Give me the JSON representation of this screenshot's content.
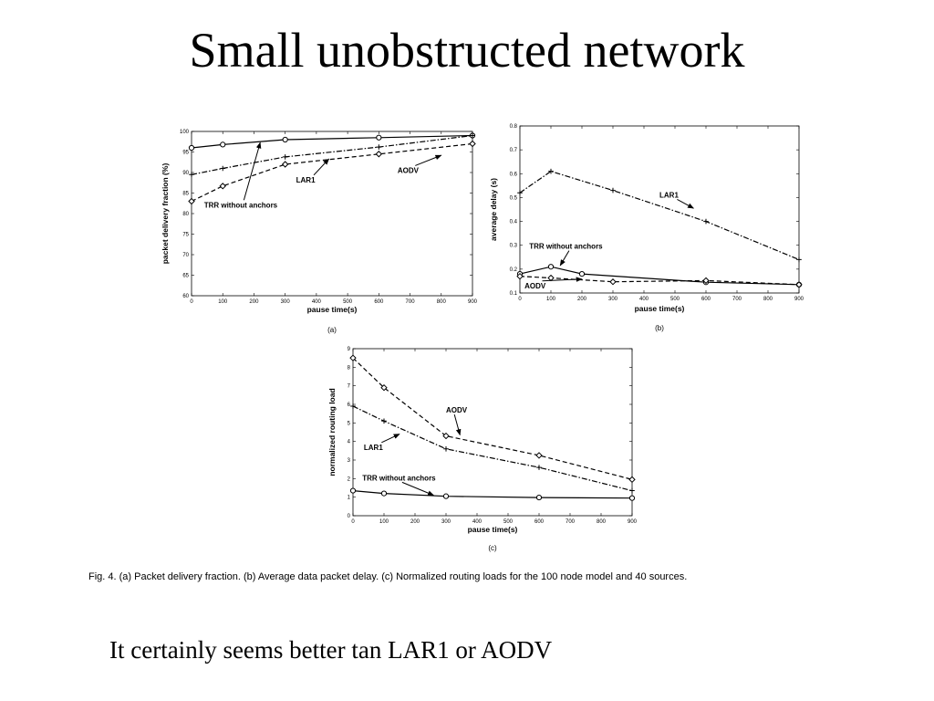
{
  "slide": {
    "title": "Small unobstructed network",
    "caption": "Fig. 4. (a) Packet delivery fraction. (b) Average data packet delay. (c) Normalized routing loads for the 100 node model and 40 sources.",
    "note": "It certainly seems better tan LAR1 or AODV"
  },
  "chart_data": [
    {
      "id": "a",
      "type": "line",
      "panel_label": "(a)",
      "xlabel": "pause time(s)",
      "ylabel": "packet delivery fraction (%)",
      "xlim": [
        0,
        900
      ],
      "ylim": [
        60,
        100
      ],
      "xticks": [
        0,
        100,
        200,
        300,
        400,
        500,
        600,
        700,
        800,
        900
      ],
      "yticks": [
        60,
        65,
        70,
        75,
        80,
        85,
        90,
        95,
        100
      ],
      "grid": false,
      "series": [
        {
          "name": "TRR without anchors",
          "style": "solid",
          "marker": "circle",
          "x": [
            0,
            100,
            300,
            600,
            900
          ],
          "y": [
            96,
            96.8,
            98,
            98.5,
            99
          ]
        },
        {
          "name": "LAR1",
          "style": "dashdot",
          "marker": "plus",
          "x": [
            0,
            100,
            300,
            600,
            900
          ],
          "y": [
            89.5,
            91,
            93.8,
            96.2,
            99
          ]
        },
        {
          "name": "AODV",
          "style": "dashed",
          "marker": "diamond",
          "x": [
            0,
            100,
            300,
            600,
            900
          ],
          "y": [
            83,
            86.7,
            92,
            94.5,
            97
          ]
        }
      ],
      "annotations": [
        {
          "text": "TRR without anchors",
          "x": 40,
          "y": 81.5,
          "arrow_to": [
            220,
            97.3
          ]
        },
        {
          "text": "LAR1",
          "x": 335,
          "y": 87.6,
          "arrow_to": [
            440,
            93.3
          ]
        },
        {
          "text": "AODV",
          "x": 660,
          "y": 89.9,
          "arrow_to": [
            800,
            94.2
          ]
        }
      ]
    },
    {
      "id": "b",
      "type": "line",
      "panel_label": "(b)",
      "xlabel": "pause time(s)",
      "ylabel": "average delay (s)",
      "xlim": [
        0,
        900
      ],
      "ylim": [
        0.1,
        0.8
      ],
      "xticks": [
        0,
        100,
        200,
        300,
        400,
        500,
        600,
        700,
        800,
        900
      ],
      "yticks": [
        0.1,
        0.2,
        0.3,
        0.4,
        0.5,
        0.6,
        0.7,
        0.8
      ],
      "grid": false,
      "series": [
        {
          "name": "TRR without anchors",
          "style": "solid",
          "marker": "circle",
          "x": [
            0,
            100,
            200,
            600,
            900
          ],
          "y": [
            0.18,
            0.21,
            0.18,
            0.145,
            0.135
          ]
        },
        {
          "name": "LAR1",
          "style": "dashdot",
          "marker": "plus",
          "x": [
            0,
            100,
            300,
            600,
            900
          ],
          "y": [
            0.52,
            0.61,
            0.53,
            0.4,
            0.24
          ]
        },
        {
          "name": "AODV",
          "style": "dashed",
          "marker": "diamond",
          "x": [
            0,
            100,
            300,
            600,
            900
          ],
          "y": [
            0.17,
            0.163,
            0.147,
            0.152,
            0.135
          ]
        }
      ],
      "annotations": [
        {
          "text": "TRR without anchors",
          "x": 30,
          "y": 0.285,
          "arrow_to": [
            130,
            0.215
          ]
        },
        {
          "text": "LAR1",
          "x": 450,
          "y": 0.5,
          "arrow_to": [
            560,
            0.455
          ]
        },
        {
          "text": "AODV",
          "x": 15,
          "y": 0.12,
          "arrow_to": [
            200,
            0.158
          ]
        }
      ]
    },
    {
      "id": "c",
      "type": "line",
      "panel_label": "(c)",
      "xlabel": "pause time(s)",
      "ylabel": "normalized routing load",
      "xlim": [
        0,
        900
      ],
      "ylim": [
        0,
        9
      ],
      "xticks": [
        0,
        100,
        200,
        300,
        400,
        500,
        600,
        700,
        800,
        900
      ],
      "yticks": [
        0,
        1,
        2,
        3,
        4,
        5,
        6,
        7,
        8,
        9
      ],
      "grid": false,
      "series": [
        {
          "name": "TRR without anchors",
          "style": "solid",
          "marker": "circle",
          "x": [
            0,
            100,
            300,
            600,
            900
          ],
          "y": [
            1.35,
            1.2,
            1.05,
            0.98,
            0.95
          ]
        },
        {
          "name": "LAR1",
          "style": "dashdot",
          "marker": "plus",
          "x": [
            0,
            100,
            300,
            600,
            900
          ],
          "y": [
            5.9,
            5.1,
            3.6,
            2.6,
            1.35
          ]
        },
        {
          "name": "AODV",
          "style": "dashed",
          "marker": "diamond",
          "x": [
            0,
            100,
            300,
            600,
            900
          ],
          "y": [
            8.5,
            6.9,
            4.3,
            3.25,
            1.95
          ]
        }
      ],
      "annotations": [
        {
          "text": "TRR without anchors",
          "x": 30,
          "y": 1.9,
          "arrow_to": [
            260,
            1.1
          ]
        },
        {
          "text": "LAR1",
          "x": 35,
          "y": 3.55,
          "arrow_to": [
            150,
            4.4
          ]
        },
        {
          "text": "AODV",
          "x": 300,
          "y": 5.55,
          "arrow_to": [
            345,
            4.35
          ]
        }
      ]
    }
  ]
}
